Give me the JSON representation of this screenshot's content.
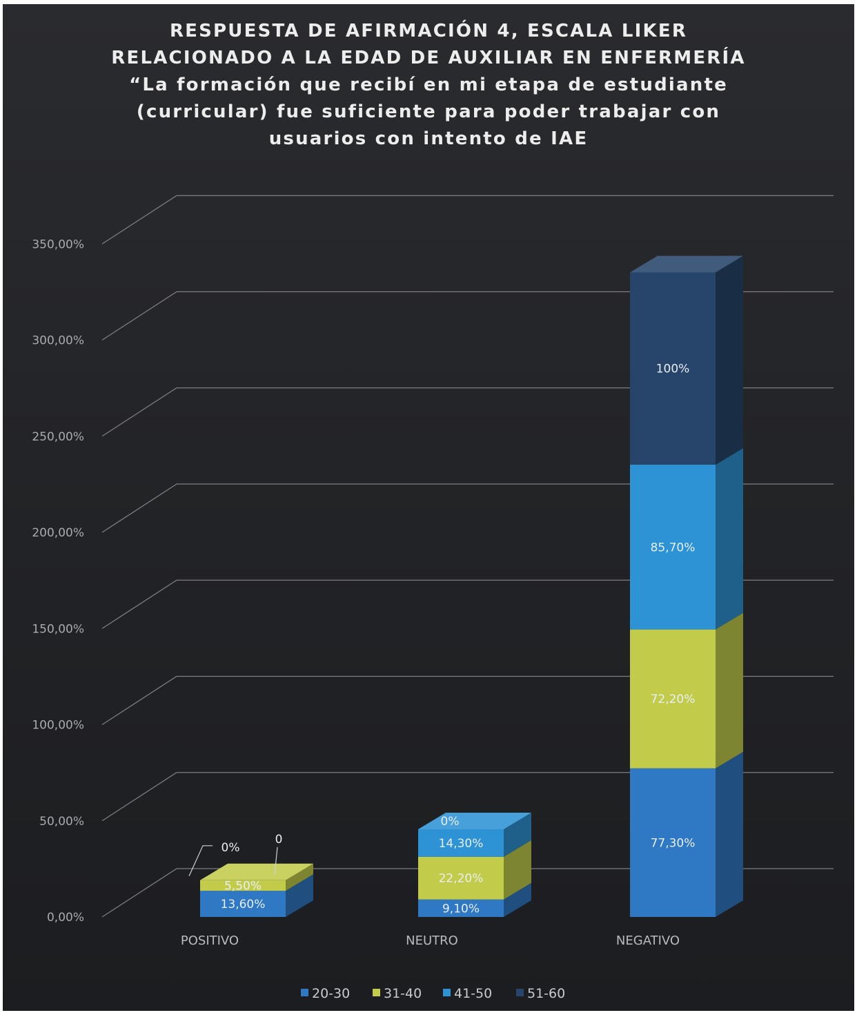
{
  "colors": {
    "20-30": "#2f78c4",
    "31-40": "#c2cc4a",
    "41-50": "#2e93d4",
    "51-60": "#27456a"
  },
  "chart_data": {
    "type": "bar",
    "stacked": true,
    "three_d": true,
    "title_lines": [
      "RESPUESTA DE AFIRMACIÓN 4, ESCALA LIKER",
      "RELACIONADO A LA EDAD DE AUXILIAR EN ENFERMERÍA",
      "“La formación que recibí en mi etapa de estudiante",
      "(curricular) fue suficiente para poder trabajar con",
      "usuarios con intento de IAE"
    ],
    "categories": [
      "POSITIVO",
      "NEUTRO",
      "NEGATIVO"
    ],
    "series": [
      {
        "name": "20-30",
        "values": [
          13.6,
          9.1,
          77.3
        ],
        "labels": [
          "13,60%",
          "9,10%",
          "77,30%"
        ]
      },
      {
        "name": "31-40",
        "values": [
          5.5,
          22.2,
          72.2
        ],
        "labels": [
          "5,50%",
          "22,20%",
          "72,20%"
        ]
      },
      {
        "name": "41-50",
        "values": [
          0,
          14.3,
          85.7
        ],
        "labels": [
          "0%",
          "14,30%",
          "85,70%"
        ]
      },
      {
        "name": "51-60",
        "values": [
          0,
          0,
          100
        ],
        "labels": [
          "0",
          "0%",
          "100%"
        ]
      }
    ],
    "y_ticks": [
      "0,00%",
      "50,00%",
      "100,00%",
      "150,00%",
      "200,00%",
      "250,00%",
      "300,00%",
      "350,00%"
    ],
    "ylim": [
      0,
      350
    ],
    "grid": true,
    "legend_position": "bottom"
  }
}
